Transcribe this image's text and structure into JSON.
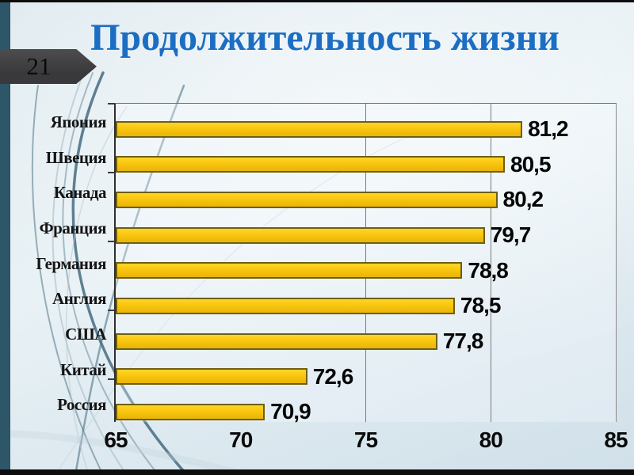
{
  "slide": {
    "number": "21",
    "title": "Продолжительность жизни"
  },
  "colors": {
    "title_blue": "#1b6ec3",
    "bar_fill": "#f9c60e",
    "bar_border": "#6e5f12",
    "left_bar_teal": "#2d5668",
    "badge_gray": "#39393b"
  },
  "chart_data": {
    "type": "bar",
    "orientation": "horizontal",
    "title": "Продолжительность жизни",
    "categories": [
      "Япония",
      "Швеция",
      "Канада",
      "Франция",
      "Германия",
      "Англия",
      "США",
      "Китай",
      "Россия"
    ],
    "values": [
      81.2,
      80.5,
      80.2,
      79.7,
      78.8,
      78.5,
      77.8,
      72.6,
      70.9
    ],
    "value_labels": [
      "81,2",
      "80,5",
      "80,2",
      "79,7",
      "78,8",
      "78,5",
      "77,8",
      "72,6",
      "70,9"
    ],
    "xlim": [
      65,
      85
    ],
    "x_ticks": [
      65,
      70,
      75,
      80,
      85
    ],
    "x_tick_labels": [
      "65",
      "70",
      "75",
      "80",
      "85"
    ],
    "visible_vertical_gridlines_at": [
      75,
      80
    ],
    "grid": true,
    "legend": "none",
    "data_labels": "outside-end",
    "xlabel": "",
    "ylabel": ""
  }
}
